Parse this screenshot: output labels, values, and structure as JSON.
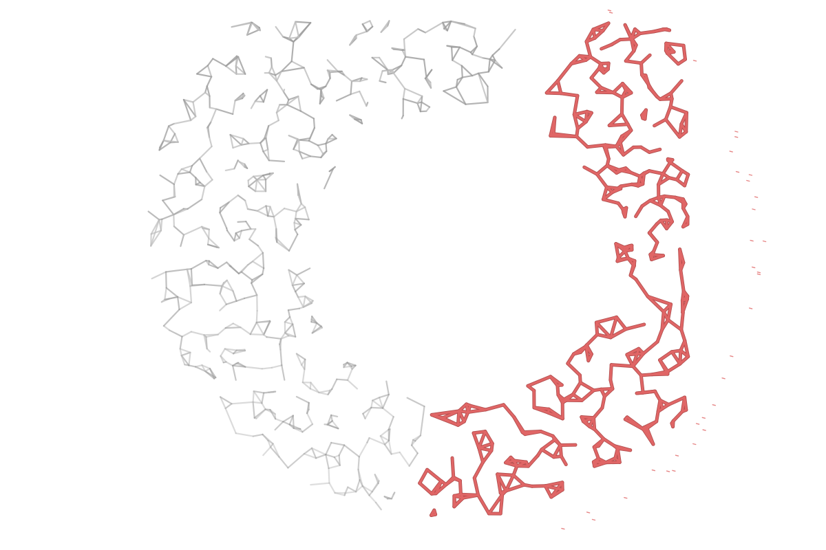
{
  "scene": {
    "background": "#ffffff",
    "subject": "strut-network-render",
    "regions": [
      {
        "name": "gray-structure",
        "role": "unhighlighted",
        "color": "#9e9e9e",
        "shade": "#bdbdbd"
      },
      {
        "name": "red-structure",
        "role": "highlighted",
        "color": "#e06666",
        "shade": "#b04848"
      }
    ]
  }
}
